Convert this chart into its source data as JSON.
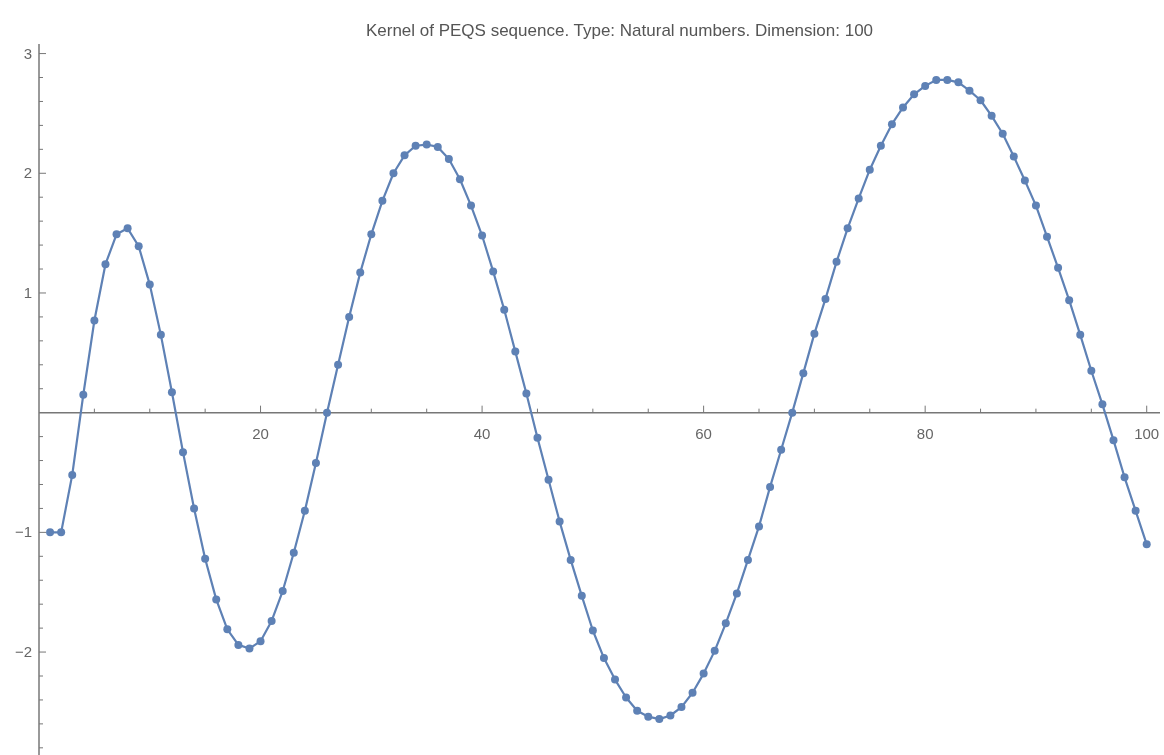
{
  "chart_data": {
    "type": "line",
    "title": "Kernel of PEQS sequence. Type: Natural numbers. Dimension: 100",
    "marker": "circle",
    "line_style": "solid",
    "grid": false,
    "x": [
      1,
      2,
      3,
      4,
      5,
      6,
      7,
      8,
      9,
      10,
      11,
      12,
      13,
      14,
      15,
      16,
      17,
      18,
      19,
      20,
      21,
      22,
      23,
      24,
      25,
      26,
      27,
      28,
      29,
      30,
      31,
      32,
      33,
      34,
      35,
      36,
      37,
      38,
      39,
      40,
      41,
      42,
      43,
      44,
      45,
      46,
      47,
      48,
      49,
      50,
      51,
      52,
      53,
      54,
      55,
      56,
      57,
      58,
      59,
      60,
      61,
      62,
      63,
      64,
      65,
      66,
      67,
      68,
      69,
      70,
      71,
      72,
      73,
      74,
      75,
      76,
      77,
      78,
      79,
      80,
      81,
      82,
      83,
      84,
      85,
      86,
      87,
      88,
      89,
      90,
      91,
      92,
      93,
      94,
      95,
      96,
      97,
      98,
      99,
      100
    ],
    "series": [
      {
        "color": "#5e81b5",
        "values": [
          -1.0,
          -1.0,
          -0.52,
          0.15,
          0.77,
          1.24,
          1.49,
          1.54,
          1.39,
          1.07,
          0.65,
          0.17,
          -0.33,
          -0.8,
          -1.22,
          -1.56,
          -1.81,
          -1.94,
          -1.97,
          -1.91,
          -1.74,
          -1.49,
          -1.17,
          -0.82,
          -0.42,
          0.0,
          0.4,
          0.8,
          1.17,
          1.49,
          1.77,
          2.0,
          2.15,
          2.23,
          2.24,
          2.22,
          2.12,
          1.95,
          1.73,
          1.48,
          1.18,
          0.86,
          0.51,
          0.16,
          -0.21,
          -0.56,
          -0.91,
          -1.23,
          -1.53,
          -1.82,
          -2.05,
          -2.23,
          -2.38,
          -2.49,
          -2.54,
          -2.56,
          -2.53,
          -2.46,
          -2.34,
          -2.18,
          -1.99,
          -1.76,
          -1.51,
          -1.23,
          -0.95,
          -0.62,
          -0.31,
          0.0,
          0.33,
          0.66,
          0.95,
          1.26,
          1.54,
          1.79,
          2.03,
          2.23,
          2.41,
          2.55,
          2.66,
          2.73,
          2.78,
          2.78,
          2.76,
          2.69,
          2.61,
          2.48,
          2.33,
          2.14,
          1.94,
          1.73,
          1.47,
          1.21,
          0.94,
          0.65,
          0.35,
          0.07,
          -0.23,
          -0.54,
          -0.82,
          -1.1
        ]
      }
    ],
    "xlim": [
      0,
      101.2
    ],
    "ylim": [
      -2.86,
      3.08
    ],
    "xticks": [
      {
        "value": 5,
        "label": null
      },
      {
        "value": 10,
        "label": null
      },
      {
        "value": 15,
        "label": null
      },
      20,
      {
        "value": 25,
        "label": null
      },
      {
        "value": 30,
        "label": null
      },
      {
        "value": 35,
        "label": null
      },
      40,
      {
        "value": 45,
        "label": null
      },
      {
        "value": 50,
        "label": null
      },
      {
        "value": 55,
        "label": null
      },
      60,
      {
        "value": 65,
        "label": null
      },
      {
        "value": 70,
        "label": null
      },
      {
        "value": 75,
        "label": null
      },
      80,
      {
        "value": 85,
        "label": null
      },
      {
        "value": 90,
        "label": null
      },
      {
        "value": 95,
        "label": null
      },
      100
    ],
    "yticks": [
      {
        "value": -2.8,
        "label": null
      },
      {
        "value": -2.6,
        "label": null
      },
      {
        "value": -2.4,
        "label": null
      },
      {
        "value": -2.2,
        "label": null
      },
      -2,
      {
        "value": -1.8,
        "label": null
      },
      {
        "value": -1.6,
        "label": null
      },
      {
        "value": -1.4,
        "label": null
      },
      {
        "value": -1.2,
        "label": null
      },
      -1,
      {
        "value": -0.8,
        "label": null
      },
      {
        "value": -0.6,
        "label": null
      },
      {
        "value": -0.4,
        "label": null
      },
      {
        "value": -0.2,
        "label": null
      },
      {
        "value": 0.2,
        "label": null
      },
      {
        "value": 0.4,
        "label": null
      },
      {
        "value": 0.6,
        "label": null
      },
      {
        "value": 0.8,
        "label": null
      },
      1,
      {
        "value": 1.2,
        "label": null
      },
      {
        "value": 1.4,
        "label": null
      },
      {
        "value": 1.6,
        "label": null
      },
      {
        "value": 1.8,
        "label": null
      },
      2,
      {
        "value": 2.2,
        "label": null
      },
      {
        "value": 2.4,
        "label": null
      },
      {
        "value": 2.6,
        "label": null
      },
      {
        "value": 2.8,
        "label": null
      },
      3
    ]
  }
}
